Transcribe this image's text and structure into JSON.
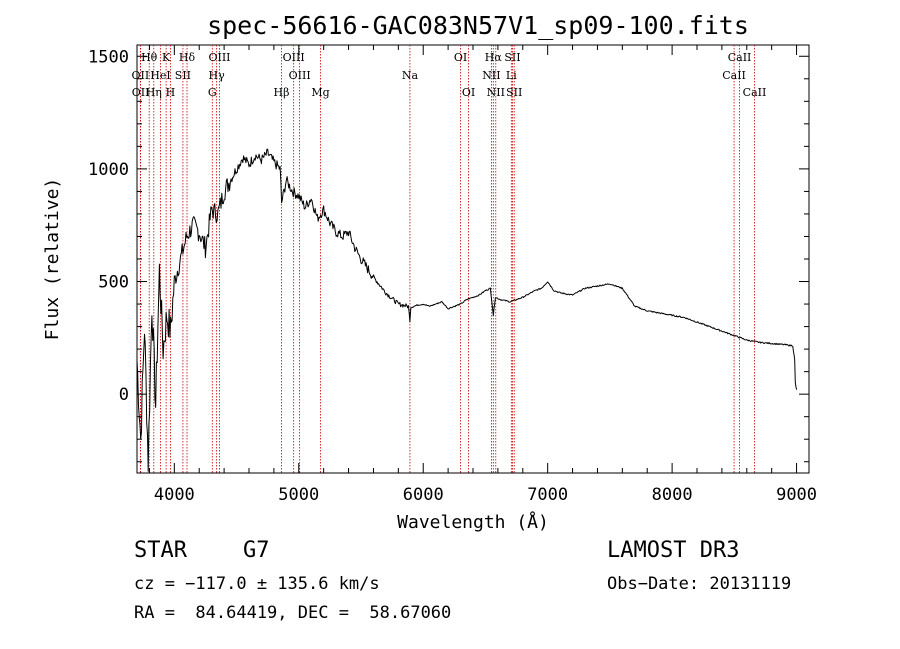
{
  "chart_data": {
    "type": "line",
    "title": "spec-56616-GAC083N57V1_sp09-100.fits",
    "xlabel": "Wavelength (Å)",
    "ylabel": "Flux (relative)",
    "xlim": [
      3700,
      9100
    ],
    "ylim": [
      -350,
      1550
    ],
    "xticks": [
      4000,
      5000,
      6000,
      7000,
      8000,
      9000
    ],
    "yticks": [
      0,
      500,
      1000,
      1500
    ],
    "series": [
      {
        "name": "spectrum",
        "x": [
          3700,
          3730,
          3760,
          3790,
          3820,
          3850,
          3880,
          3910,
          3940,
          3970,
          4000,
          4050,
          4100,
          4150,
          4200,
          4250,
          4300,
          4350,
          4400,
          4450,
          4500,
          4550,
          4600,
          4650,
          4700,
          4750,
          4800,
          4850,
          4862,
          4900,
          4950,
          5000,
          5050,
          5100,
          5150,
          5200,
          5250,
          5300,
          5350,
          5400,
          5450,
          5500,
          5600,
          5700,
          5800,
          5880,
          5893,
          5900,
          5950,
          6000,
          6050,
          6100,
          6150,
          6200,
          6250,
          6300,
          6350,
          6400,
          6450,
          6500,
          6540,
          6563,
          6580,
          6620,
          6700,
          6800,
          6900,
          6950,
          7000,
          7050,
          7100,
          7200,
          7300,
          7400,
          7500,
          7600,
          7700,
          7800,
          7900,
          8000,
          8100,
          8200,
          8300,
          8400,
          8500,
          8600,
          8700,
          8800,
          8900,
          8970,
          8985,
          8990,
          9000
        ],
        "y": [
          150,
          -200,
          300,
          -300,
          400,
          -50,
          550,
          200,
          350,
          280,
          500,
          600,
          700,
          750,
          720,
          650,
          820,
          800,
          900,
          950,
          1000,
          1050,
          1020,
          1060,
          1040,
          1070,
          1030,
          1000,
          850,
          950,
          900,
          880,
          830,
          870,
          780,
          820,
          760,
          720,
          700,
          720,
          650,
          600,
          520,
          450,
          400,
          390,
          330,
          385,
          395,
          400,
          390,
          400,
          410,
          380,
          390,
          400,
          420,
          430,
          440,
          460,
          470,
          350,
          430,
          420,
          410,
          430,
          460,
          470,
          500,
          460,
          450,
          440,
          470,
          480,
          490,
          470,
          390,
          370,
          360,
          350,
          340,
          320,
          300,
          280,
          260,
          240,
          230,
          225,
          220,
          215,
          150,
          50,
          20
        ]
      }
    ],
    "lines": [
      {
        "name": "Hθ",
        "x": 3798,
        "row": 0
      },
      {
        "name": "OII",
        "x": 3727,
        "row": 1
      },
      {
        "name": "OII",
        "x": 3729,
        "row": 2
      },
      {
        "name": "Hη",
        "x": 3835,
        "row": 2
      },
      {
        "name": "K",
        "x": 3934,
        "row": 0
      },
      {
        "name": "HeI",
        "x": 3889,
        "row": 1
      },
      {
        "name": "H",
        "x": 3969,
        "row": 2
      },
      {
        "name": "SII",
        "x": 4069,
        "row": 1
      },
      {
        "name": "Hδ",
        "x": 4102,
        "row": 0
      },
      {
        "name": "OIII",
        "x": 4363,
        "row": 0
      },
      {
        "name": "Hγ",
        "x": 4340,
        "row": 1
      },
      {
        "name": "G",
        "x": 4305,
        "row": 2
      },
      {
        "name": "Hβ",
        "x": 4861,
        "row": 2
      },
      {
        "name": "OIII",
        "x": 4959,
        "row": 0
      },
      {
        "name": "OIII",
        "x": 5007,
        "row": 1
      },
      {
        "name": "Mg",
        "x": 5175,
        "row": 2
      },
      {
        "name": "Na",
        "x": 5893,
        "row": 1
      },
      {
        "name": "OI",
        "x": 6300,
        "row": 0
      },
      {
        "name": "OI",
        "x": 6364,
        "row": 2
      },
      {
        "name": "Hα",
        "x": 6563,
        "row": 0
      },
      {
        "name": "NII",
        "x": 6548,
        "row": 1
      },
      {
        "name": "NII",
        "x": 6583,
        "row": 2
      },
      {
        "name": "SII",
        "x": 6717,
        "row": 0
      },
      {
        "name": "Li",
        "x": 6708,
        "row": 1
      },
      {
        "name": "SII",
        "x": 6731,
        "row": 2
      },
      {
        "name": "CaII",
        "x": 8542,
        "row": 0
      },
      {
        "name": "CaII",
        "x": 8498,
        "row": 1
      },
      {
        "name": "CaII",
        "x": 8662,
        "row": 2
      }
    ],
    "colors": {
      "spectrum": "#000000",
      "lines": "#cc0000"
    }
  },
  "info": {
    "class_label": "STAR",
    "subclass": "G7",
    "survey": "LAMOST DR3",
    "cz": "cz = −117.0 ± 135.6 km/s",
    "obs_date": "Obs−Date: 20131119",
    "coords": "RA =  84.64419, DEC =  58.67060"
  }
}
